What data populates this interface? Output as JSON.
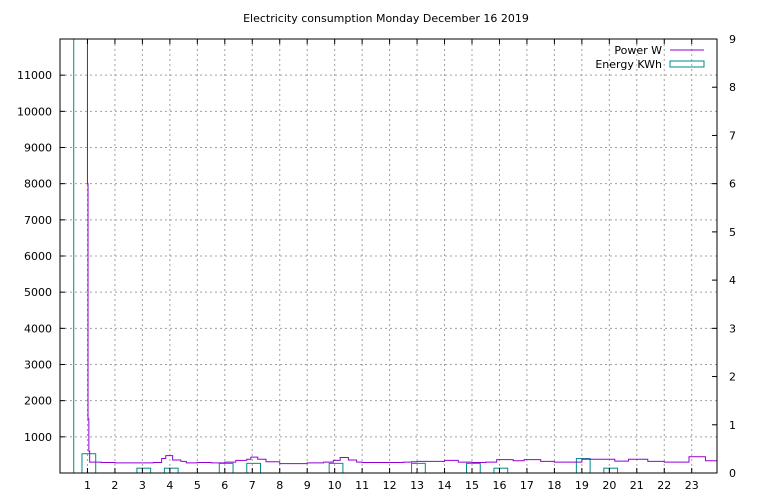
{
  "chart_data": {
    "type": "line",
    "title": "Electricity consumption Monday December 16 2019",
    "xlabel": "",
    "ylabel": "",
    "y2label": "",
    "xlim": [
      0,
      23.92
    ],
    "ylim": [
      0,
      12000
    ],
    "y2lim": [
      0,
      9
    ],
    "grid": true,
    "legend_position": "top-right",
    "x_ticks": [
      1,
      2,
      3,
      4,
      5,
      6,
      7,
      8,
      9,
      10,
      11,
      12,
      13,
      14,
      15,
      16,
      17,
      18,
      19,
      20,
      21,
      22,
      23
    ],
    "y_ticks": [
      1000,
      2000,
      3000,
      4000,
      5000,
      6000,
      7000,
      8000,
      9000,
      10000,
      11000
    ],
    "y2_ticks": [
      0,
      1,
      2,
      3,
      4,
      5,
      6,
      7,
      8,
      9
    ],
    "series": [
      {
        "name": "Power W",
        "axis": "y",
        "style": "steps",
        "color": "#9400d3",
        "x": [
          0,
          1.0,
          1.02,
          1.05,
          1.08,
          1.5,
          2,
          2.5,
          3,
          3.4,
          3.7,
          3.85,
          4.1,
          4.4,
          4.6,
          5,
          5.5,
          6,
          6.4,
          6.8,
          6.95,
          7.2,
          7.5,
          8,
          8.5,
          9,
          9.6,
          9.95,
          10.2,
          10.5,
          10.8,
          11,
          11.5,
          12,
          12.5,
          12.8,
          13,
          13.5,
          14,
          14.5,
          15,
          15.5,
          15.9,
          16.5,
          16.9,
          17.5,
          18,
          18.5,
          19,
          19.5,
          20.2,
          20.7,
          21.4,
          22,
          22.5,
          22.9,
          23.5
        ],
        "y": [
          12000,
          8000,
          1500,
          600,
          300,
          290,
          280,
          280,
          280,
          290,
          400,
          480,
          360,
          320,
          280,
          290,
          280,
          300,
          350,
          380,
          440,
          380,
          310,
          260,
          260,
          280,
          300,
          350,
          430,
          360,
          300,
          290,
          290,
          290,
          300,
          310,
          320,
          320,
          350,
          300,
          290,
          300,
          370,
          340,
          370,
          320,
          300,
          300,
          380,
          380,
          330,
          380,
          320,
          300,
          300,
          450,
          340
        ]
      },
      {
        "name": "Energy KWh",
        "axis": "y2",
        "style": "boxes",
        "color": "#008b8b",
        "x": [
          0.25,
          1.05,
          3.05,
          4.05,
          6.05,
          7.05,
          10.05,
          13.05,
          15.05,
          16.05,
          19.05,
          20.05
        ],
        "y": [
          9.0,
          0.4,
          0.1,
          0.1,
          0.2,
          0.2,
          0.2,
          0.2,
          0.2,
          0.1,
          0.3,
          0.1
        ],
        "box_width": 0.5
      }
    ]
  }
}
